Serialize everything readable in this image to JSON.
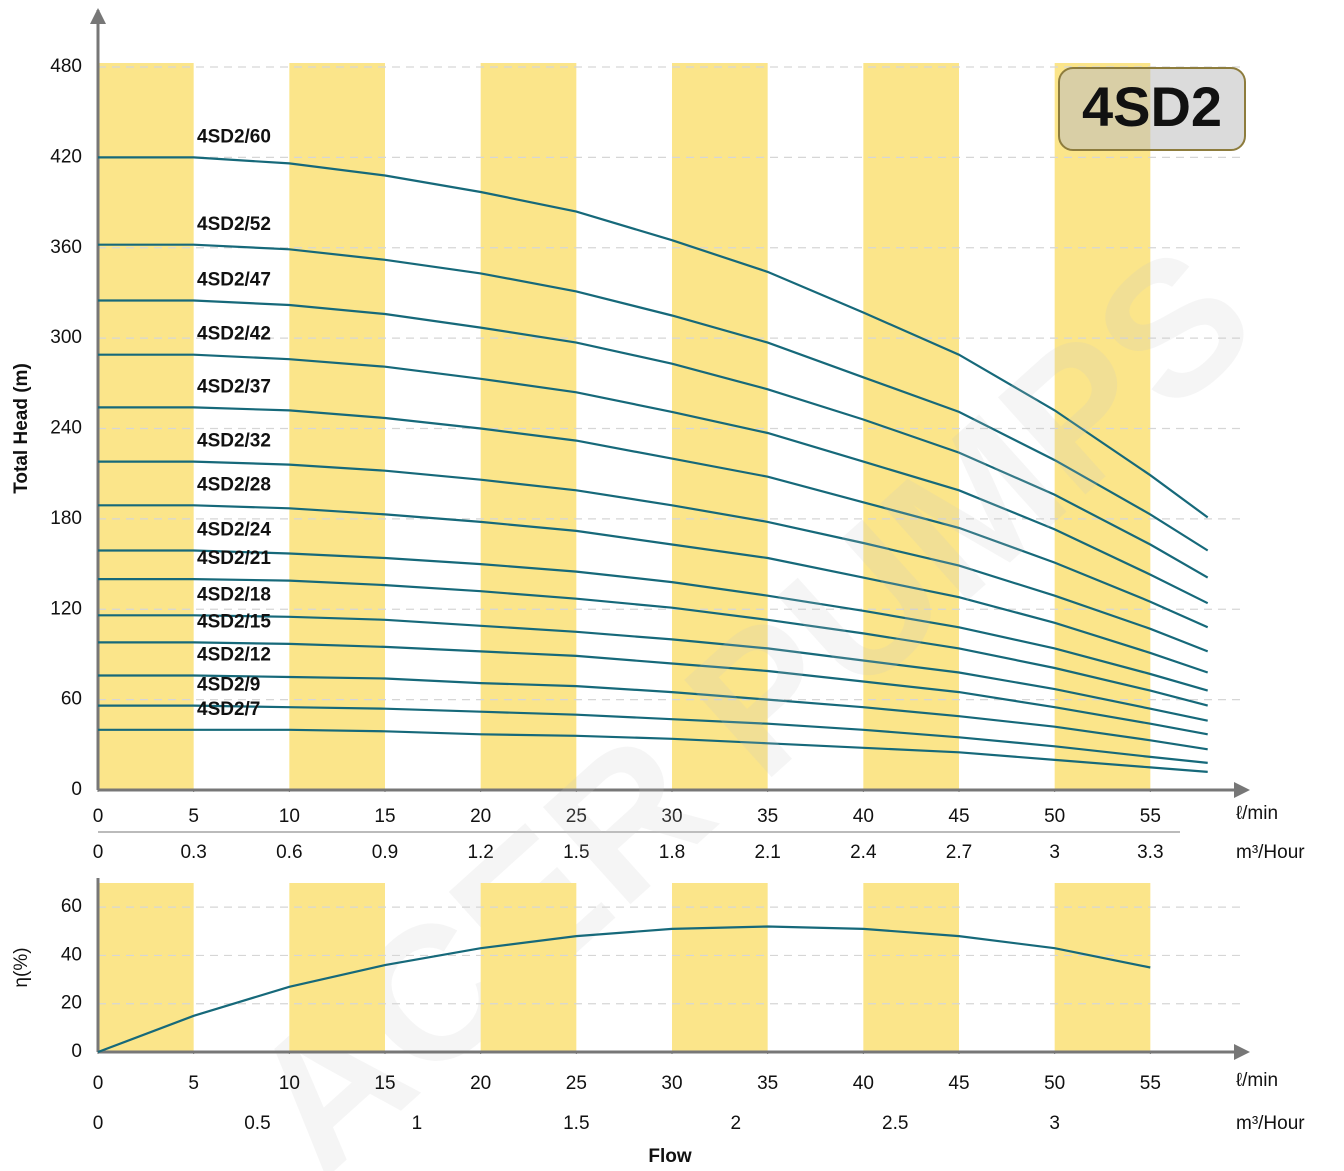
{
  "chart_data": [
    {
      "type": "line",
      "badge": "4SD2",
      "watermark": "ACER PUMPS",
      "ylabel": "Total Head (m)",
      "x_unit_label": "ℓ/min",
      "x2_unit_label": "m³/Hour",
      "color": "#16697a",
      "band_color": "#fbe58a",
      "xlim": [
        0,
        60
      ],
      "xticks": [
        0,
        5,
        10,
        15,
        20,
        25,
        30,
        35,
        40,
        45,
        50,
        55
      ],
      "x2lim": [
        0,
        3.6
      ],
      "x2ticks": [
        0,
        0.3,
        0.6,
        0.9,
        1.2,
        1.5,
        1.8,
        2.1,
        2.4,
        2.7,
        3,
        3.3
      ],
      "ylim": [
        0,
        480
      ],
      "yticks": [
        0,
        60,
        120,
        180,
        240,
        300,
        360,
        420,
        480
      ],
      "grid": true,
      "x": [
        0,
        5,
        10,
        15,
        20,
        25,
        30,
        35,
        40,
        45,
        50,
        55,
        58
      ],
      "series": [
        {
          "name": "4SD2/60",
          "values": [
            420,
            420,
            416,
            408,
            397,
            384,
            365,
            344,
            317,
            289,
            252,
            209,
            181
          ]
        },
        {
          "name": "4SD2/52",
          "values": [
            362,
            362,
            359,
            352,
            343,
            331,
            315,
            297,
            274,
            251,
            219,
            183,
            159
          ]
        },
        {
          "name": "4SD2/47",
          "values": [
            325,
            325,
            322,
            316,
            307,
            297,
            283,
            266,
            246,
            224,
            196,
            163,
            141
          ]
        },
        {
          "name": "4SD2/42",
          "values": [
            289,
            289,
            286,
            281,
            273,
            264,
            251,
            237,
            218,
            199,
            173,
            143,
            124
          ]
        },
        {
          "name": "4SD2/37",
          "values": [
            254,
            254,
            252,
            247,
            240,
            232,
            220,
            208,
            191,
            174,
            151,
            125,
            108
          ]
        },
        {
          "name": "4SD2/32",
          "values": [
            218,
            218,
            216,
            212,
            206,
            199,
            189,
            178,
            164,
            149,
            129,
            107,
            92
          ]
        },
        {
          "name": "4SD2/28",
          "values": [
            189,
            189,
            187,
            183,
            178,
            172,
            163,
            154,
            141,
            128,
            111,
            91,
            78
          ]
        },
        {
          "name": "4SD2/24",
          "values": [
            159,
            159,
            157,
            154,
            150,
            145,
            138,
            129,
            119,
            108,
            94,
            77,
            66
          ]
        },
        {
          "name": "4SD2/21",
          "values": [
            140,
            140,
            139,
            136,
            132,
            127,
            121,
            113,
            104,
            94,
            81,
            66,
            56
          ]
        },
        {
          "name": "4SD2/18",
          "values": [
            116,
            116,
            115,
            113,
            109,
            105,
            100,
            94,
            86,
            78,
            67,
            54,
            46
          ]
        },
        {
          "name": "4SD2/15",
          "values": [
            98,
            98,
            97,
            95,
            92,
            89,
            84,
            79,
            72,
            65,
            55,
            44,
            37
          ]
        },
        {
          "name": "4SD2/12",
          "values": [
            76,
            76,
            75,
            74,
            71,
            69,
            65,
            60,
            55,
            49,
            42,
            33,
            27
          ]
        },
        {
          "name": "4SD2/9",
          "values": [
            56,
            56,
            55,
            54,
            52,
            50,
            47,
            44,
            40,
            35,
            29,
            22,
            18
          ]
        },
        {
          "name": "4SD2/7",
          "values": [
            40,
            40,
            40,
            39,
            37,
            36,
            34,
            31,
            28,
            25,
            20,
            15,
            12
          ]
        }
      ]
    },
    {
      "type": "line",
      "ylabel": "η(%)",
      "xlabel": "Flow",
      "x_unit_label": "ℓ/min",
      "x2_unit_label": "m³/Hour",
      "color": "#16697a",
      "band_color": "#fbe58a",
      "xlim": [
        0,
        60
      ],
      "xticks": [
        0,
        5,
        10,
        15,
        20,
        25,
        30,
        35,
        40,
        45,
        50,
        55
      ],
      "x2lim": [
        0,
        3.6
      ],
      "x2ticks": [
        0,
        0.5,
        1,
        1.5,
        2,
        2.5,
        3
      ],
      "ylim": [
        0,
        70
      ],
      "yticks": [
        0,
        20,
        40,
        60
      ],
      "grid": true,
      "x": [
        0,
        5,
        10,
        15,
        20,
        25,
        30,
        35,
        40,
        45,
        50,
        55
      ],
      "series": [
        {
          "values": [
            0,
            15,
            27,
            36,
            43,
            48,
            51,
            52,
            51,
            48,
            43,
            35
          ]
        }
      ]
    }
  ]
}
